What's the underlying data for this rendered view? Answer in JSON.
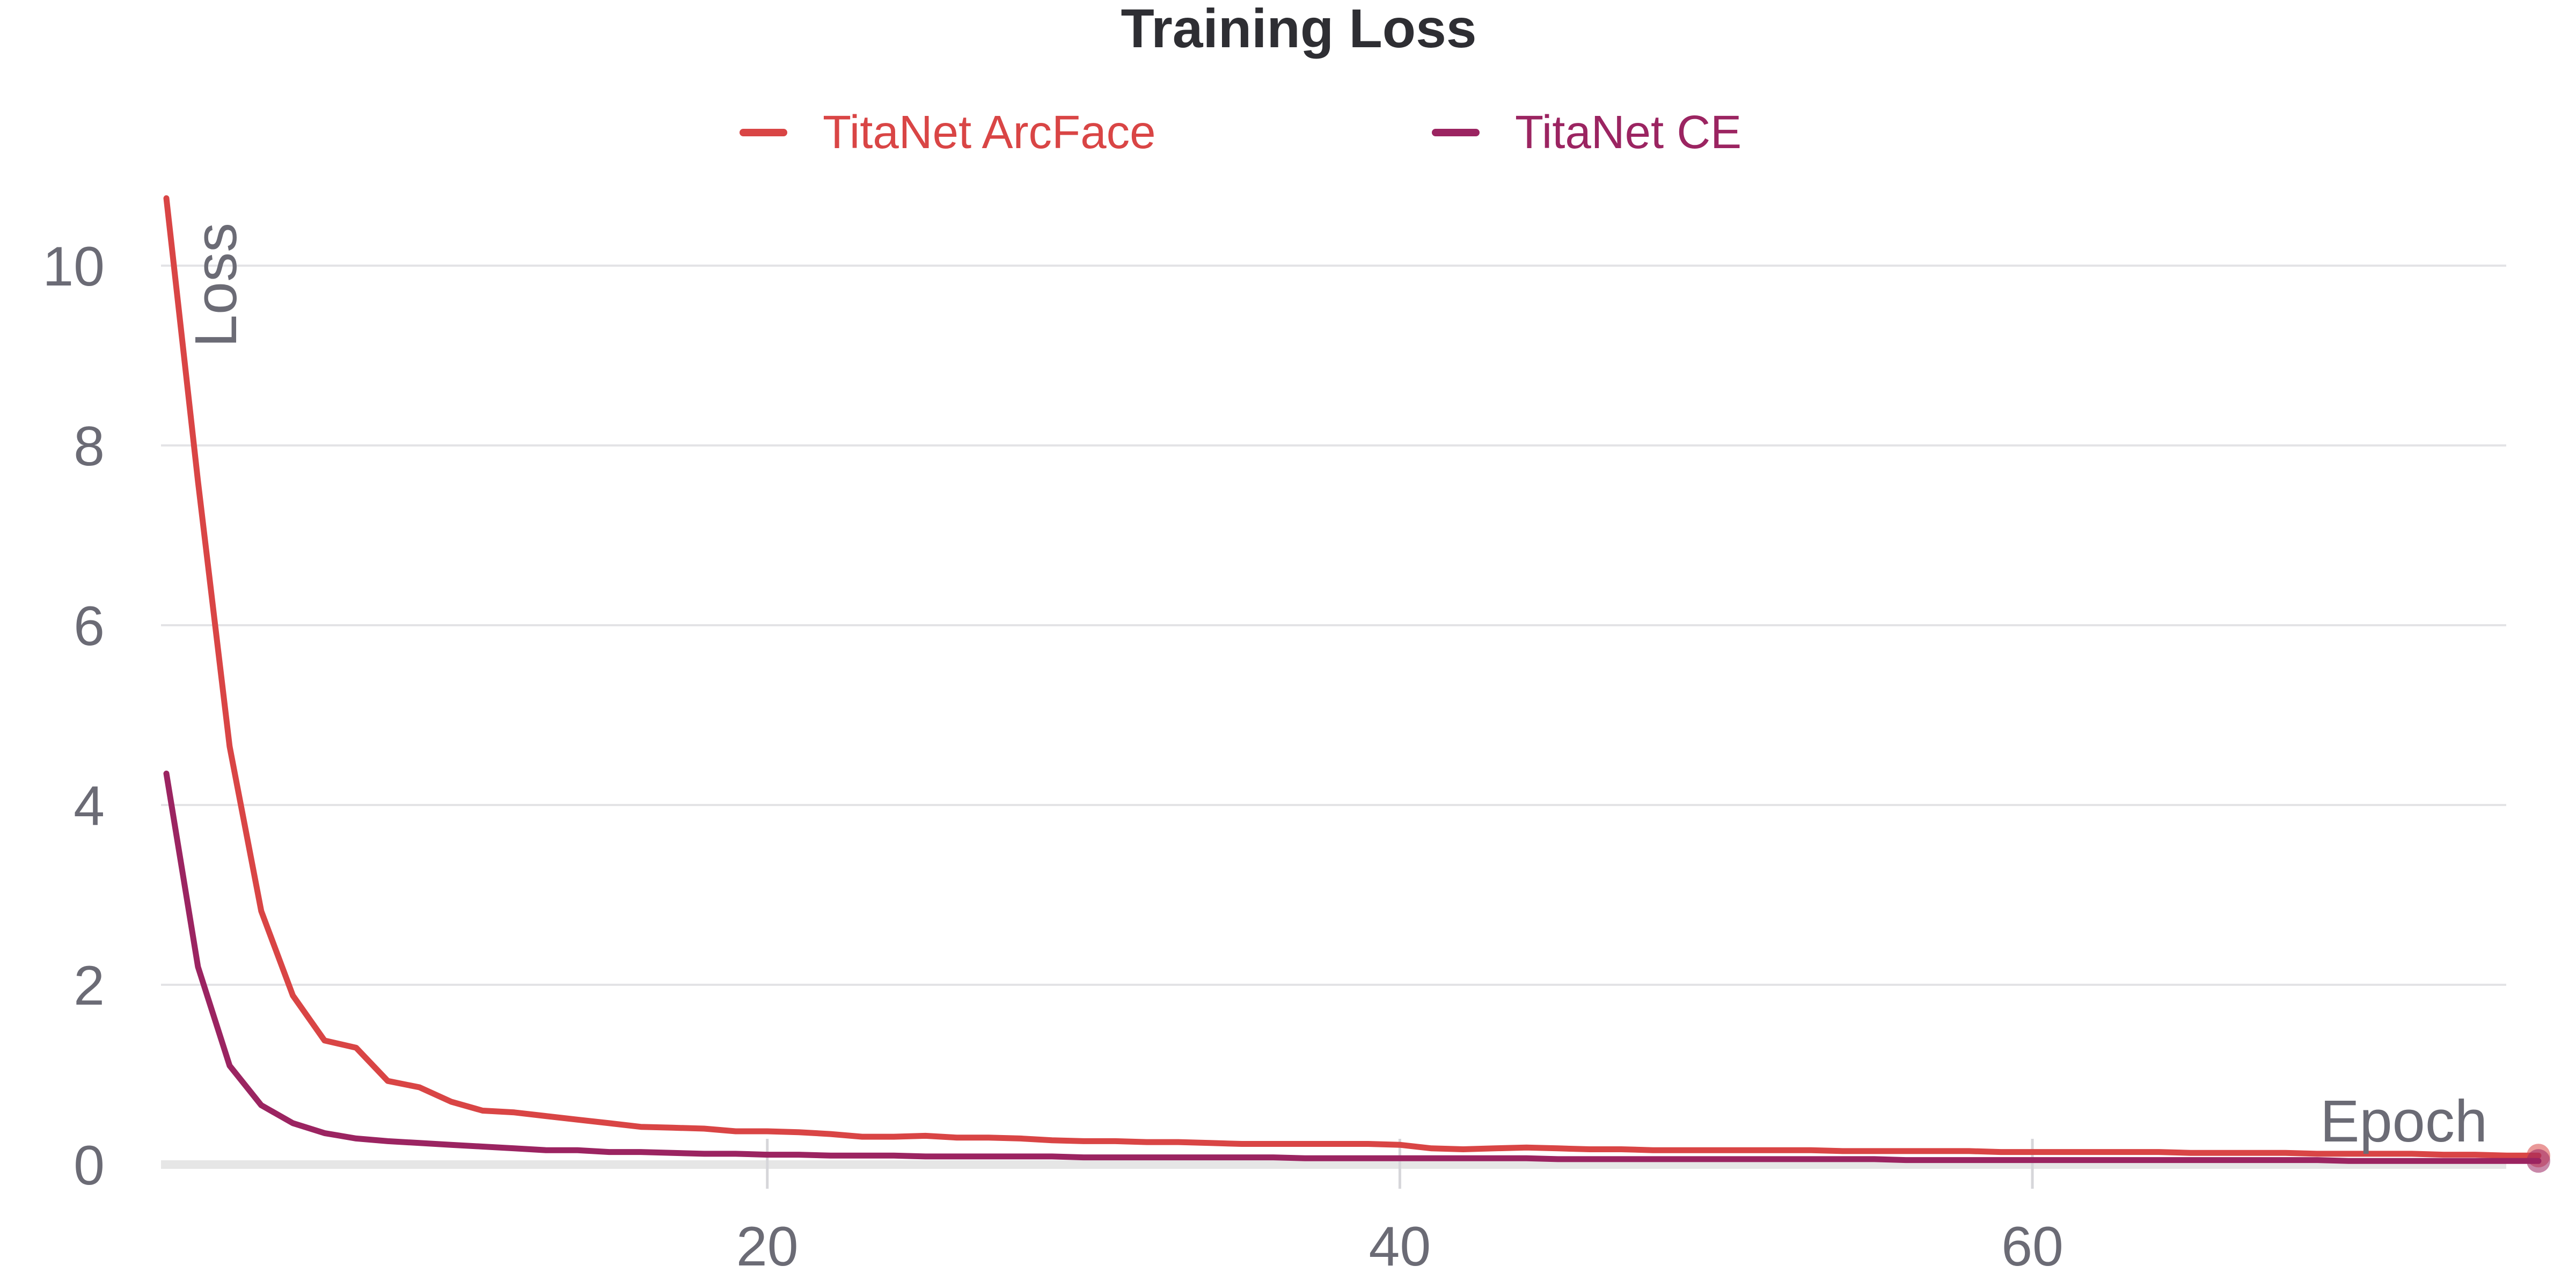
{
  "chart_data": {
    "type": "line",
    "title": "Training Loss",
    "xlabel": "Epoch",
    "ylabel": "Loss",
    "xlim": [
      0,
      75
    ],
    "ylim": [
      0,
      10.8
    ],
    "xticks": [
      20,
      40,
      60
    ],
    "yticks": [
      0,
      2,
      4,
      6,
      8,
      10
    ],
    "grid": "horizontal",
    "legend_position": "top",
    "colors": {
      "title": "#2e2e33",
      "ticks": "#6b6b75",
      "grid": "#e3e3e6",
      "baseline": "#e6e6e6"
    },
    "series": [
      {
        "name": "TitaNet ArcFace",
        "color": "#d94545",
        "values": [
          10.75,
          7.6,
          4.65,
          2.82,
          1.88,
          1.38,
          1.3,
          0.93,
          0.86,
          0.7,
          0.6,
          0.58,
          0.54,
          0.5,
          0.46,
          0.42,
          0.41,
          0.4,
          0.37,
          0.37,
          0.36,
          0.34,
          0.31,
          0.31,
          0.32,
          0.3,
          0.3,
          0.29,
          0.27,
          0.26,
          0.26,
          0.25,
          0.25,
          0.24,
          0.23,
          0.23,
          0.23,
          0.23,
          0.23,
          0.22,
          0.18,
          0.17,
          0.18,
          0.19,
          0.18,
          0.17,
          0.17,
          0.16,
          0.16,
          0.16,
          0.16,
          0.16,
          0.16,
          0.15,
          0.15,
          0.15,
          0.15,
          0.15,
          0.14,
          0.14,
          0.14,
          0.14,
          0.14,
          0.14,
          0.13,
          0.13,
          0.13,
          0.13,
          0.12,
          0.12,
          0.12,
          0.12,
          0.11,
          0.11,
          0.1,
          0.1
        ]
      },
      {
        "name": "TitaNet CE",
        "color": "#9b2461",
        "values": [
          4.35,
          2.2,
          1.1,
          0.66,
          0.46,
          0.35,
          0.29,
          0.26,
          0.24,
          0.22,
          0.2,
          0.18,
          0.16,
          0.16,
          0.14,
          0.14,
          0.13,
          0.12,
          0.12,
          0.11,
          0.11,
          0.1,
          0.1,
          0.1,
          0.09,
          0.09,
          0.09,
          0.09,
          0.09,
          0.08,
          0.08,
          0.08,
          0.08,
          0.08,
          0.08,
          0.08,
          0.07,
          0.07,
          0.07,
          0.07,
          0.07,
          0.07,
          0.07,
          0.07,
          0.06,
          0.06,
          0.06,
          0.06,
          0.06,
          0.06,
          0.06,
          0.06,
          0.06,
          0.06,
          0.06,
          0.05,
          0.05,
          0.05,
          0.05,
          0.05,
          0.05,
          0.05,
          0.05,
          0.05,
          0.05,
          0.05,
          0.05,
          0.05,
          0.05,
          0.04,
          0.04,
          0.04,
          0.04,
          0.04,
          0.04,
          0.04
        ]
      }
    ]
  }
}
